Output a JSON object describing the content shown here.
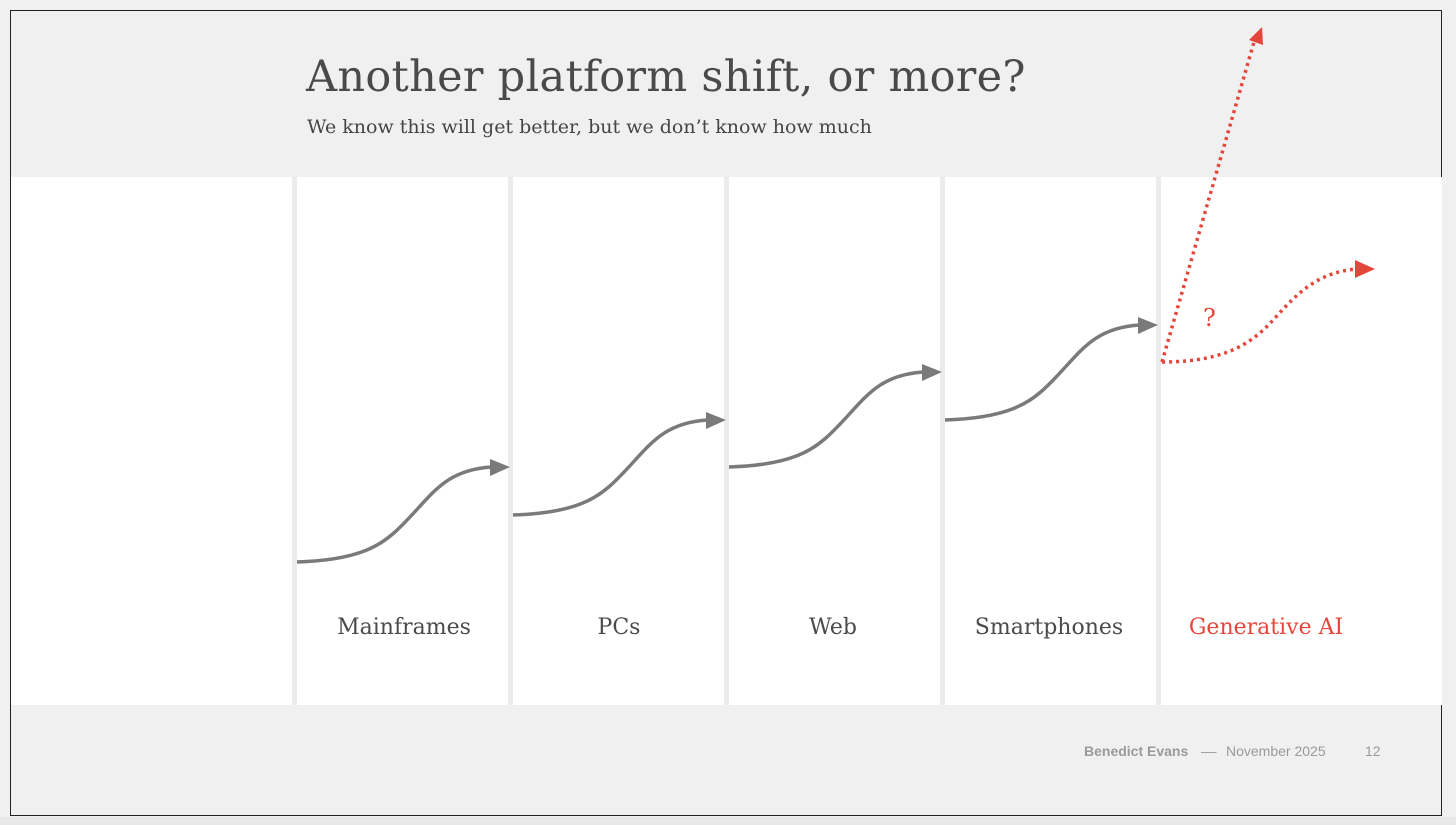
{
  "slide": {
    "title": "Another platform shift, or more?",
    "subtitle": "We know this will get better, but we don’t know how much"
  },
  "platforms": [
    {
      "label": "Mainframes",
      "highlight": false
    },
    {
      "label": "PCs",
      "highlight": false
    },
    {
      "label": "Web",
      "highlight": false
    },
    {
      "label": "Smartphones",
      "highlight": false
    },
    {
      "label": "Generative AI",
      "highlight": true
    }
  ],
  "uncertainty_mark": "?",
  "footer": {
    "author": "Benedict Evans",
    "separator": "––",
    "date": "November 2025",
    "page": "12"
  },
  "colors": {
    "accent": "#e5463b",
    "curve": "#7a7a7a",
    "text": "#4a4a4a",
    "background": "#f0f0f0"
  }
}
